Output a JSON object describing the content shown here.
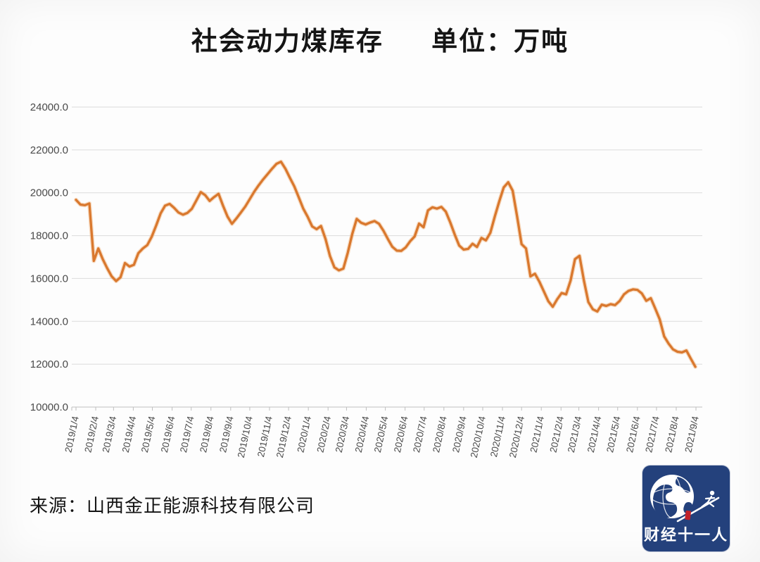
{
  "title": {
    "main": "社会动力煤库存",
    "unit_label": "单位：万吨"
  },
  "source": {
    "text": "来源：山西金正能源科技有限公司"
  },
  "logo": {
    "text": "财经十一人",
    "bg_color": "#24417C",
    "accent_red": "#C2222A"
  },
  "colors": {
    "line": "#D9782E",
    "line_glow": "#F0B27A",
    "grid": "#DCDCDC",
    "axis": "#BFBFBF",
    "tick_text": "#4A4A4A",
    "title_text": "#151515"
  },
  "chart_data": {
    "type": "line",
    "title": "社会动力煤库存",
    "unit": "万吨",
    "series_name": "社会动力煤库存",
    "legend": "none",
    "grid": true,
    "ylim": [
      10000,
      24000
    ],
    "y_tick_labels": [
      "24000.0",
      "22000.0",
      "20000.0",
      "18000.0",
      "16000.0",
      "14000.0",
      "12000.0",
      "10000.0"
    ],
    "x_start": "2019/1/4",
    "x_interval_days": 7,
    "x_tick_labels": [
      "2019/1/4",
      "2019/2/4",
      "2019/3/4",
      "2019/4/4",
      "2019/5/4",
      "2019/6/4",
      "2019/7/4",
      "2019/8/4",
      "2019/9/4",
      "2019/10/4",
      "2019/11/4",
      "2019/12/4",
      "2020/1/4",
      "2020/2/4",
      "2020/3/4",
      "2020/4/4",
      "2020/5/4",
      "2020/6/4",
      "2020/7/4",
      "2020/8/4",
      "2020/9/4",
      "2020/10/4",
      "2020/11/4",
      "2020/12/4",
      "2021/1/4",
      "2021/2/4",
      "2021/3/4",
      "2021/4/4",
      "2021/5/4",
      "2021/6/4",
      "2021/7/4",
      "2021/8/4",
      "2021/9/4"
    ],
    "values": [
      19670,
      19450,
      19420,
      19500,
      16820,
      17400,
      16900,
      16480,
      16100,
      15880,
      16060,
      16720,
      16560,
      16640,
      17180,
      17400,
      17560,
      17950,
      18480,
      19040,
      19400,
      19480,
      19300,
      19080,
      18980,
      19060,
      19250,
      19640,
      20030,
      19890,
      19620,
      19800,
      19950,
      19400,
      18890,
      18550,
      18800,
      19080,
      19360,
      19700,
      20050,
      20350,
      20620,
      20870,
      21120,
      21350,
      21450,
      21120,
      20700,
      20300,
      19780,
      19260,
      18880,
      18430,
      18300,
      18450,
      17840,
      17050,
      16520,
      16380,
      16460,
      17200,
      18080,
      18780,
      18600,
      18520,
      18610,
      18680,
      18550,
      18230,
      17840,
      17480,
      17300,
      17290,
      17450,
      17740,
      17960,
      18560,
      18390,
      19180,
      19320,
      19260,
      19340,
      19120,
      18610,
      18050,
      17540,
      17350,
      17380,
      17620,
      17470,
      17890,
      17780,
      18130,
      18900,
      19600,
      20250,
      20490,
      20100,
      18900,
      17600,
      17400,
      16100,
      16220,
      15850,
      15400,
      14940,
      14680,
      15030,
      15320,
      15260,
      15900,
      16900,
      17060,
      15900,
      14900,
      14560,
      14460,
      14780,
      14720,
      14800,
      14760,
      14950,
      15260,
      15420,
      15490,
      15470,
      15300,
      14960,
      15080,
      14600,
      14100,
      13300,
      12960,
      12690,
      12580,
      12550,
      12640,
      12250,
      11880
    ]
  }
}
